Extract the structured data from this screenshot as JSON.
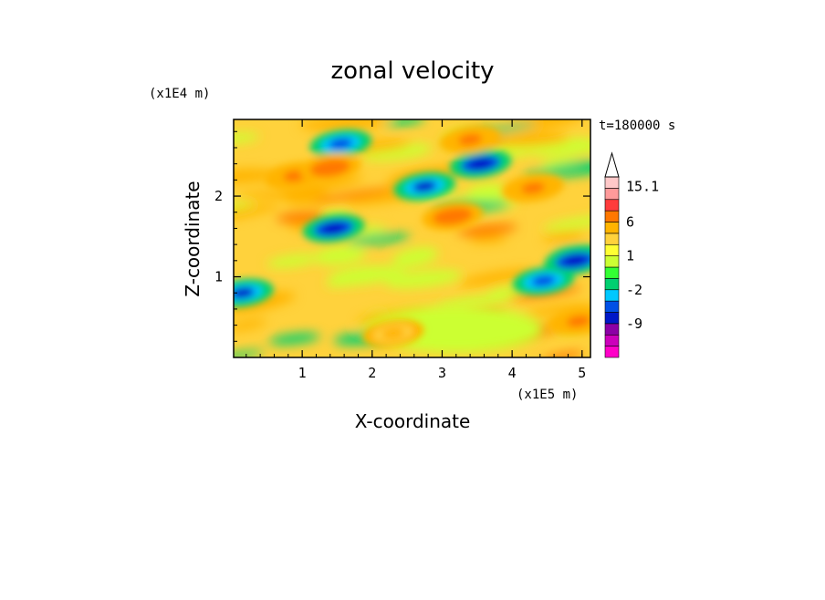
{
  "chart_data": {
    "type": "heatmap",
    "title": "zonal velocity",
    "xlabel": "X-coordinate",
    "ylabel": "Z-coordinate",
    "x_unit": "(x1E5 m)",
    "y_unit": "(x1E4 m)",
    "time_label": "t=180000 s",
    "xlim": [
      0.02,
      5.12
    ],
    "ylim": [
      0.0,
      2.95
    ],
    "x_ticks": [
      1,
      2,
      3,
      4,
      5
    ],
    "y_ticks": [
      1,
      2
    ],
    "colorbar": {
      "levels": [
        -15,
        -12,
        -9,
        -6,
        -4,
        -2,
        -1,
        0,
        1,
        2,
        4,
        6,
        9,
        12,
        15.1
      ],
      "colors": [
        "#ff00c8",
        "#cc00bb",
        "#8c00a6",
        "#0018c8",
        "#0050e6",
        "#00c8ff",
        "#00d070",
        "#33ff33",
        "#ccff33",
        "#ffff33",
        "#ffd23c",
        "#ffb400",
        "#ff7800",
        "#ff3c3c",
        "#ff9a9a",
        "#ffc8c8"
      ],
      "labels": [
        "15.1",
        "6",
        "1",
        "-2",
        "-9"
      ],
      "label_values": [
        15.1,
        6,
        1,
        -2,
        -9
      ],
      "max_arrow": true
    },
    "features": [
      {
        "x": 1.55,
        "z": 2.65,
        "u": -6
      },
      {
        "x": 3.55,
        "z": 2.4,
        "u": -9
      },
      {
        "x": 2.75,
        "z": 2.12,
        "u": -7
      },
      {
        "x": 1.45,
        "z": 1.6,
        "u": -8
      },
      {
        "x": 4.45,
        "z": 0.95,
        "u": -6
      },
      {
        "x": 0.15,
        "z": 0.8,
        "u": -7
      },
      {
        "x": 4.9,
        "z": 1.2,
        "u": -8
      },
      {
        "x": 0.9,
        "z": 2.25,
        "u": 7
      },
      {
        "x": 1.4,
        "z": 2.35,
        "u": 8
      },
      {
        "x": 3.15,
        "z": 1.75,
        "u": 8
      },
      {
        "x": 3.4,
        "z": 2.7,
        "u": 7
      },
      {
        "x": 4.3,
        "z": 2.1,
        "u": 6
      },
      {
        "x": 2.3,
        "z": 0.3,
        "u": 5
      },
      {
        "x": 4.95,
        "z": 0.45,
        "u": 6
      }
    ]
  }
}
